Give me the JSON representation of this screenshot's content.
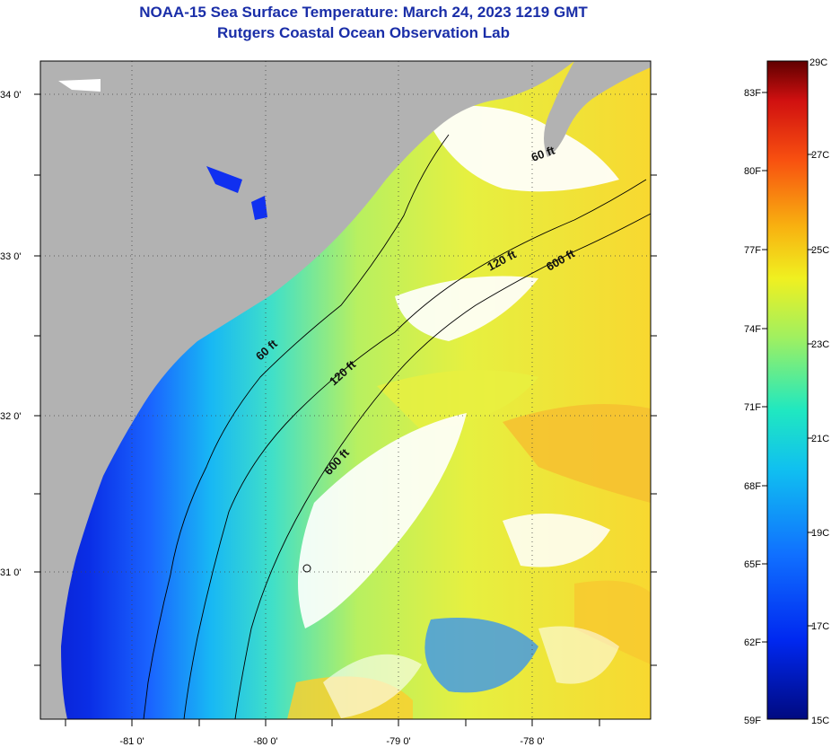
{
  "header": {
    "title": "NOAA-15 Sea Surface Temperature:  March 24, 2023 1219 GMT",
    "subtitle": "Rutgers Coastal Ocean Observation Lab"
  },
  "map": {
    "lat_labels": [
      "34 0'",
      "33 0'",
      "32 0'",
      "31 0'"
    ],
    "lon_labels": [
      "-81 0'",
      "-80 0'",
      "-79 0'",
      "-78 0'"
    ],
    "contour_labels": {
      "c60a": "60 ft",
      "c60b": "60 ft",
      "c120a": "120 ft",
      "c120b": "120 ft",
      "c600a": "600 ft",
      "c600b": "600 ft"
    }
  },
  "colorbar": {
    "fahrenheit": [
      "83F",
      "80F",
      "77F",
      "74F",
      "71F",
      "68F",
      "65F",
      "62F",
      "59F"
    ],
    "celsius": [
      "29C",
      "27C",
      "25C",
      "23C",
      "21C",
      "19C",
      "17C",
      "15C"
    ]
  },
  "colors": {
    "land": "#b2b2b2",
    "title": "#1a2ea8",
    "cold": "#0a1fd0",
    "warm": "#f0e030"
  }
}
